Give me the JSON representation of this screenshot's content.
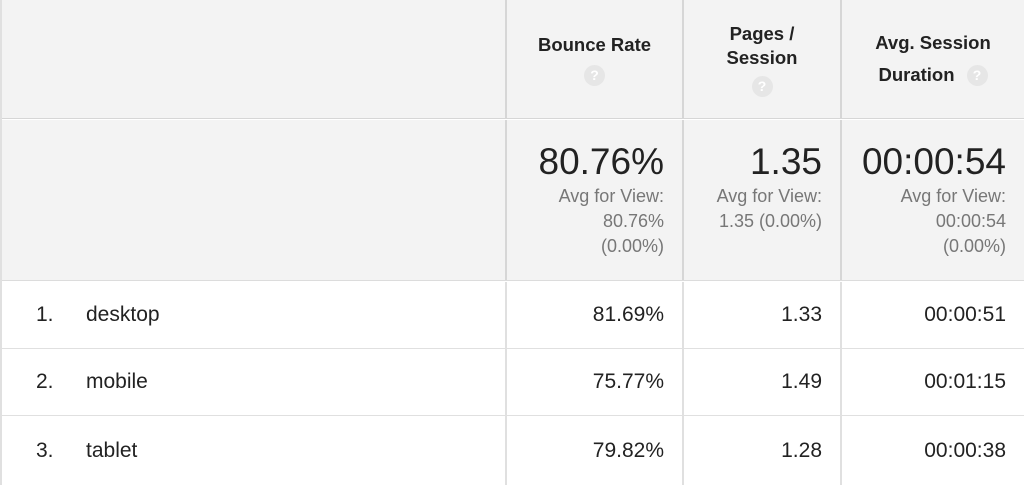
{
  "columns": {
    "bounce_rate": {
      "label": "Bounce Rate"
    },
    "pages_session": {
      "label_line1": "Pages /",
      "label_line2": "Session"
    },
    "avg_duration": {
      "label_line1": "Avg. Session",
      "label_line2": "Duration"
    },
    "help_glyph": "?"
  },
  "summary": {
    "bounce_rate": {
      "value": "80.76%",
      "avg_line1": "Avg for View:",
      "avg_line2": "80.76%",
      "avg_line3": "(0.00%)"
    },
    "pages_session": {
      "value": "1.35",
      "avg_line1": "Avg for View:",
      "avg_line2": "1.35 (0.00%)"
    },
    "avg_duration": {
      "value": "00:00:54",
      "avg_line1": "Avg for View:",
      "avg_line2": "00:00:54",
      "avg_line3": "(0.00%)"
    }
  },
  "rows": [
    {
      "index": "1.",
      "device": "desktop",
      "bounce_rate": "81.69%",
      "pages_session": "1.33",
      "avg_duration": "00:00:51"
    },
    {
      "index": "2.",
      "device": "mobile",
      "bounce_rate": "75.77%",
      "pages_session": "1.49",
      "avg_duration": "00:01:15"
    },
    {
      "index": "3.",
      "device": "tablet",
      "bounce_rate": "79.82%",
      "pages_session": "1.28",
      "avg_duration": "00:00:38"
    }
  ]
}
